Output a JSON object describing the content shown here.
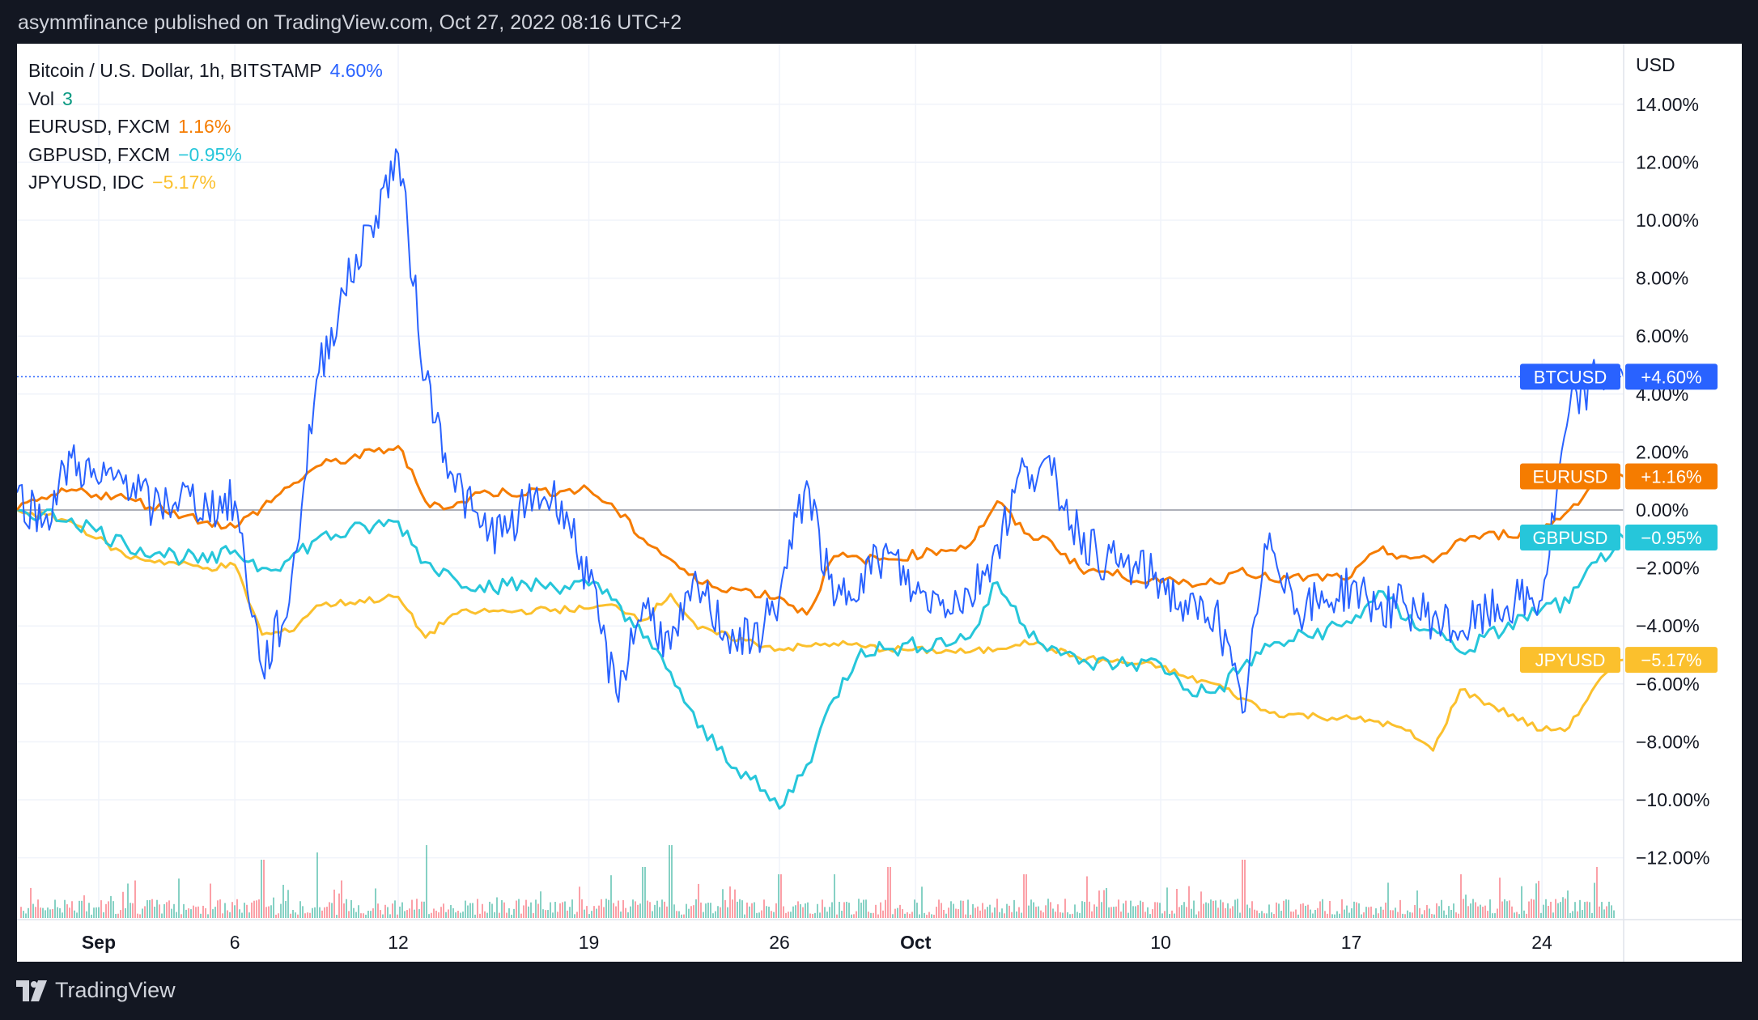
{
  "header": {
    "publisher_line": "asymmfinance published on TradingView.com, Oct 27, 2022 08:16 UTC+2"
  },
  "footer": {
    "brand": "TradingView"
  },
  "legend": {
    "main": {
      "label": "Bitcoin / U.S. Dollar, 1h, BITSTAMP",
      "value": "4.60%",
      "color": "#2962ff"
    },
    "vol": {
      "label": "Vol",
      "value": "3",
      "color": "#089981"
    },
    "items": [
      {
        "label": "EURUSD, FXCM",
        "value": "1.16%",
        "color": "#f57c00"
      },
      {
        "label": "GBPUSD, FXCM",
        "value": "−0.95%",
        "color": "#26c6da"
      },
      {
        "label": "JPYUSD, IDC",
        "value": "−5.17%",
        "color": "#fbc02d"
      }
    ]
  },
  "chart_data": {
    "type": "line",
    "title": "Bitcoin / U.S. Dollar, 1h, BITSTAMP",
    "y_unit": "USD",
    "ylim": [
      -14,
      16
    ],
    "x_range": [
      "2022-08-29",
      "2022-10-27"
    ],
    "x_ticks": [
      {
        "label": "Sep",
        "date": "2022-09-01",
        "bold": true
      },
      {
        "label": "6",
        "date": "2022-09-06"
      },
      {
        "label": "12",
        "date": "2022-09-12"
      },
      {
        "label": "19",
        "date": "2022-09-19"
      },
      {
        "label": "26",
        "date": "2022-09-26"
      },
      {
        "label": "Oct",
        "date": "2022-10-01",
        "bold": true
      },
      {
        "label": "10",
        "date": "2022-10-10"
      },
      {
        "label": "17",
        "date": "2022-10-17"
      },
      {
        "label": "24",
        "date": "2022-10-24"
      }
    ],
    "y_ticks": [
      {
        "label": "14.00%",
        "value": 14
      },
      {
        "label": "12.00%",
        "value": 12
      },
      {
        "label": "10.00%",
        "value": 10
      },
      {
        "label": "8.00%",
        "value": 8
      },
      {
        "label": "6.00%",
        "value": 6
      },
      {
        "label": "4.00%",
        "value": 4
      },
      {
        "label": "2.00%",
        "value": 2
      },
      {
        "label": "0.00%",
        "value": 0
      },
      {
        "label": "−2.00%",
        "value": -2
      },
      {
        "label": "−4.00%",
        "value": -4
      },
      {
        "label": "−6.00%",
        "value": -6
      },
      {
        "label": "−8.00%",
        "value": -8
      },
      {
        "label": "−10.00%",
        "value": -10
      },
      {
        "label": "−12.00%",
        "value": -12
      }
    ],
    "series": [
      {
        "name": "BTCUSD",
        "color": "#2962ff",
        "last_label": "+4.60%",
        "last_value": 4.6,
        "x": [
          "2022-08-29",
          "2022-08-30",
          "2022-08-31",
          "2022-09-01",
          "2022-09-02",
          "2022-09-03",
          "2022-09-04",
          "2022-09-05",
          "2022-09-06",
          "2022-09-07",
          "2022-09-08",
          "2022-09-09",
          "2022-09-10",
          "2022-09-11",
          "2022-09-12",
          "2022-09-13",
          "2022-09-14",
          "2022-09-15",
          "2022-09-16",
          "2022-09-17",
          "2022-09-18",
          "2022-09-19",
          "2022-09-20",
          "2022-09-21",
          "2022-09-22",
          "2022-09-23",
          "2022-09-24",
          "2022-09-25",
          "2022-09-26",
          "2022-09-27",
          "2022-09-28",
          "2022-09-29",
          "2022-09-30",
          "2022-10-01",
          "2022-10-02",
          "2022-10-03",
          "2022-10-04",
          "2022-10-05",
          "2022-10-06",
          "2022-10-07",
          "2022-10-08",
          "2022-10-09",
          "2022-10-10",
          "2022-10-11",
          "2022-10-12",
          "2022-10-13",
          "2022-10-14",
          "2022-10-15",
          "2022-10-16",
          "2022-10-17",
          "2022-10-18",
          "2022-10-19",
          "2022-10-20",
          "2022-10-21",
          "2022-10-22",
          "2022-10-23",
          "2022-10-24",
          "2022-10-25",
          "2022-10-26",
          "2022-10-27"
        ],
        "values": [
          0.6,
          -0.4,
          1.8,
          0.9,
          1.2,
          0.0,
          0.5,
          0.1,
          0.3,
          -5.5,
          -3.2,
          4.5,
          7.5,
          9.8,
          12.3,
          4.5,
          1.2,
          -0.6,
          -0.8,
          0.5,
          0.3,
          -2.5,
          -6.3,
          -3.2,
          -4.8,
          -2.6,
          -4.2,
          -4.6,
          -3.0,
          1.0,
          -3.3,
          -2.2,
          -1.5,
          -2.9,
          -3.1,
          -3.0,
          -1.2,
          1.5,
          1.2,
          -0.8,
          -1.8,
          -2.0,
          -2.4,
          -3.6,
          -3.4,
          -7.0,
          -0.8,
          -3.4,
          -3.2,
          -2.6,
          -3.4,
          -3.3,
          -3.7,
          -4.2,
          -3.6,
          -3.2,
          -3.1,
          3.4,
          4.6,
          4.6
        ]
      },
      {
        "name": "EURUSD",
        "color": "#f57c00",
        "last_label": "+1.16%",
        "last_value": 1.16,
        "x": [
          "2022-08-29",
          "2022-08-31",
          "2022-09-02",
          "2022-09-05",
          "2022-09-06",
          "2022-09-07",
          "2022-09-08",
          "2022-09-09",
          "2022-09-12",
          "2022-09-13",
          "2022-09-14",
          "2022-09-15",
          "2022-09-16",
          "2022-09-19",
          "2022-09-20",
          "2022-09-21",
          "2022-09-22",
          "2022-09-23",
          "2022-09-26",
          "2022-09-27",
          "2022-09-28",
          "2022-09-29",
          "2022-09-30",
          "2022-10-03",
          "2022-10-04",
          "2022-10-05",
          "2022-10-06",
          "2022-10-07",
          "2022-10-10",
          "2022-10-11",
          "2022-10-12",
          "2022-10-13",
          "2022-10-14",
          "2022-10-17",
          "2022-10-18",
          "2022-10-19",
          "2022-10-20",
          "2022-10-21",
          "2022-10-24",
          "2022-10-25",
          "2022-10-26",
          "2022-10-27"
        ],
        "values": [
          0.0,
          0.7,
          0.4,
          -0.4,
          -0.6,
          0.1,
          0.8,
          1.5,
          2.2,
          0.3,
          0.1,
          0.6,
          0.6,
          0.7,
          0.0,
          -1.0,
          -1.7,
          -2.5,
          -3.0,
          -3.6,
          -1.6,
          -1.7,
          -1.7,
          -1.2,
          0.3,
          -0.8,
          -1.1,
          -2.0,
          -2.5,
          -2.5,
          -2.5,
          -2.0,
          -2.4,
          -2.3,
          -1.4,
          -1.6,
          -1.8,
          -1.0,
          -0.7,
          0.0,
          1.0,
          1.16
        ]
      },
      {
        "name": "GBPUSD",
        "color": "#26c6da",
        "last_label": "−0.95%",
        "last_value": -0.95,
        "x": [
          "2022-08-29",
          "2022-08-31",
          "2022-09-02",
          "2022-09-05",
          "2022-09-06",
          "2022-09-07",
          "2022-09-08",
          "2022-09-09",
          "2022-09-12",
          "2022-09-13",
          "2022-09-14",
          "2022-09-15",
          "2022-09-16",
          "2022-09-19",
          "2022-09-20",
          "2022-09-21",
          "2022-09-22",
          "2022-09-23",
          "2022-09-26",
          "2022-09-27",
          "2022-09-28",
          "2022-09-29",
          "2022-09-30",
          "2022-10-03",
          "2022-10-04",
          "2022-10-05",
          "2022-10-06",
          "2022-10-07",
          "2022-10-10",
          "2022-10-11",
          "2022-10-12",
          "2022-10-13",
          "2022-10-14",
          "2022-10-17",
          "2022-10-18",
          "2022-10-19",
          "2022-10-20",
          "2022-10-21",
          "2022-10-24",
          "2022-10-25",
          "2022-10-26",
          "2022-10-27"
        ],
        "values": [
          0.0,
          -0.3,
          -1.2,
          -1.8,
          -1.4,
          -2.0,
          -1.7,
          -1.0,
          -0.4,
          -1.8,
          -2.3,
          -2.6,
          -2.6,
          -2.6,
          -3.1,
          -4.4,
          -5.6,
          -7.5,
          -10.3,
          -8.8,
          -6.5,
          -4.8,
          -4.8,
          -4.4,
          -2.5,
          -4.0,
          -4.7,
          -5.3,
          -5.3,
          -6.2,
          -6.3,
          -5.4,
          -4.7,
          -3.9,
          -2.8,
          -3.8,
          -4.1,
          -4.9,
          -3.4,
          -3.2,
          -1.8,
          -0.95
        ]
      },
      {
        "name": "JPYUSD",
        "color": "#fbc02d",
        "last_label": "−5.17%",
        "last_value": -5.17,
        "x": [
          "2022-08-29",
          "2022-08-31",
          "2022-09-02",
          "2022-09-05",
          "2022-09-06",
          "2022-09-07",
          "2022-09-08",
          "2022-09-09",
          "2022-09-12",
          "2022-09-13",
          "2022-09-14",
          "2022-09-15",
          "2022-09-16",
          "2022-09-19",
          "2022-09-20",
          "2022-09-21",
          "2022-09-22",
          "2022-09-23",
          "2022-09-26",
          "2022-09-27",
          "2022-09-28",
          "2022-09-29",
          "2022-09-30",
          "2022-10-03",
          "2022-10-04",
          "2022-10-05",
          "2022-10-06",
          "2022-10-07",
          "2022-10-10",
          "2022-10-11",
          "2022-10-12",
          "2022-10-13",
          "2022-10-14",
          "2022-10-17",
          "2022-10-18",
          "2022-10-19",
          "2022-10-20",
          "2022-10-21",
          "2022-10-24",
          "2022-10-25",
          "2022-10-26",
          "2022-10-27"
        ],
        "values": [
          0.0,
          -0.4,
          -1.6,
          -2.0,
          -1.9,
          -4.3,
          -4.2,
          -3.3,
          -3.0,
          -4.4,
          -3.6,
          -3.5,
          -3.5,
          -3.4,
          -3.3,
          -3.8,
          -2.9,
          -4.1,
          -4.8,
          -4.7,
          -4.6,
          -4.7,
          -4.8,
          -4.9,
          -4.8,
          -4.5,
          -4.8,
          -5.1,
          -5.4,
          -5.8,
          -6.0,
          -6.5,
          -7.0,
          -7.2,
          -7.3,
          -7.6,
          -8.3,
          -6.2,
          -7.6,
          -7.5,
          -6.0,
          -5.17
        ]
      }
    ],
    "volume": {
      "color_up": "#22ab94",
      "color_down": "#f7525f",
      "x": [
        "2022-09-07",
        "2022-09-09",
        "2022-09-13",
        "2022-09-21",
        "2022-09-22",
        "2022-09-26",
        "2022-09-28",
        "2022-09-30",
        "2022-10-05",
        "2022-10-13",
        "2022-10-21",
        "2022-10-26"
      ],
      "values": [
        0.8,
        0.9,
        1.0,
        0.7,
        1.0,
        0.6,
        0.6,
        0.7,
        0.6,
        0.8,
        0.6,
        0.7
      ]
    }
  }
}
